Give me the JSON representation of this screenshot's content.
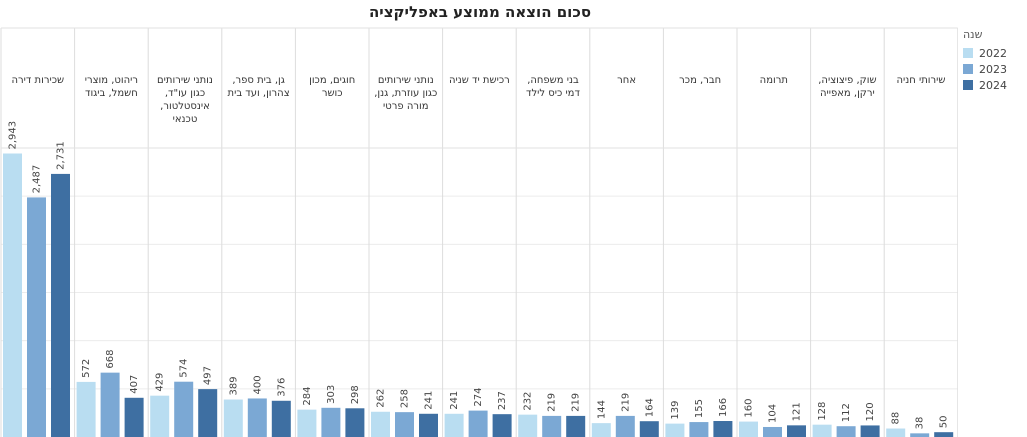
{
  "chart_data": {
    "type": "bar",
    "title": "סכום הוצאה ממוצע באפליקציה",
    "legend_title": "שנה",
    "legend_position": "right",
    "categories": [
      "שכירות דירה",
      "ריהוט, מוצרי חשמל, ביגוד",
      "נותני שירותים כגון עו\"ד, אינסטלטור, טכנאי",
      "גן, בית ספר, צהרון, ועד בית",
      "חוגים, מכון כושר",
      "נותני שירותים כגון עוזרת, גנן, מורה פרטי",
      "רכישת יד שניה",
      "בני משפחה, דמי כיס לילד",
      "אחר",
      "חבר, מכר",
      "תרומה",
      "שוק, פיצוציה, ירקן, מאפייה",
      "שירותי חניה"
    ],
    "series": [
      {
        "name": "2022",
        "color": "#b9ddf1",
        "values": [
          2943,
          572,
          429,
          389,
          284,
          262,
          241,
          232,
          144,
          139,
          160,
          128,
          88
        ]
      },
      {
        "name": "2023",
        "color": "#7ba8d4",
        "values": [
          2487,
          668,
          574,
          400,
          303,
          258,
          274,
          219,
          219,
          155,
          104,
          112,
          38
        ]
      },
      {
        "name": "2024",
        "color": "#3e6fa2",
        "values": [
          2731,
          407,
          497,
          376,
          298,
          241,
          237,
          219,
          164,
          166,
          121,
          120,
          50
        ]
      }
    ],
    "ylim": [
      0,
      3000
    ],
    "grid": true
  }
}
